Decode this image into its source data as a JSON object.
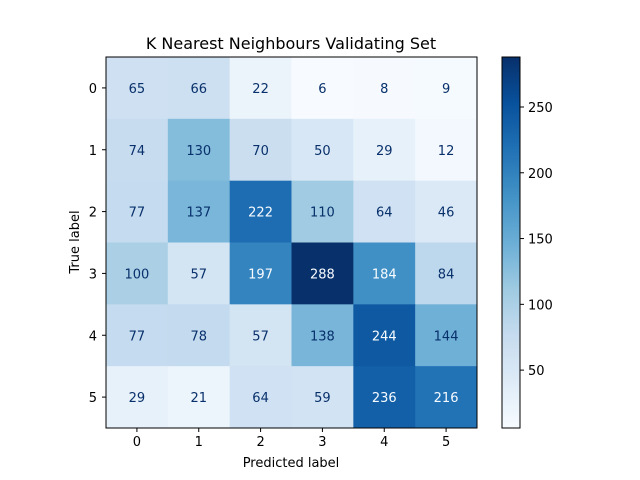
{
  "chart_data": {
    "type": "heatmap",
    "title": "K Nearest Neighbours Validating Set",
    "xlabel": "Predicted label",
    "ylabel": "True label",
    "x_categories": [
      "0",
      "1",
      "2",
      "3",
      "4",
      "5"
    ],
    "y_categories": [
      "0",
      "1",
      "2",
      "3",
      "4",
      "5"
    ],
    "values": [
      [
        65,
        66,
        22,
        6,
        8,
        9
      ],
      [
        74,
        130,
        70,
        50,
        29,
        12
      ],
      [
        77,
        137,
        222,
        110,
        64,
        46
      ],
      [
        100,
        57,
        197,
        288,
        184,
        84
      ],
      [
        77,
        78,
        57,
        138,
        244,
        144
      ],
      [
        29,
        21,
        64,
        59,
        236,
        216
      ]
    ],
    "colormap": "Blues",
    "color_range": [
      6,
      288
    ],
    "colorbar_ticks": [
      50,
      100,
      150,
      200,
      250
    ],
    "grid": false
  }
}
